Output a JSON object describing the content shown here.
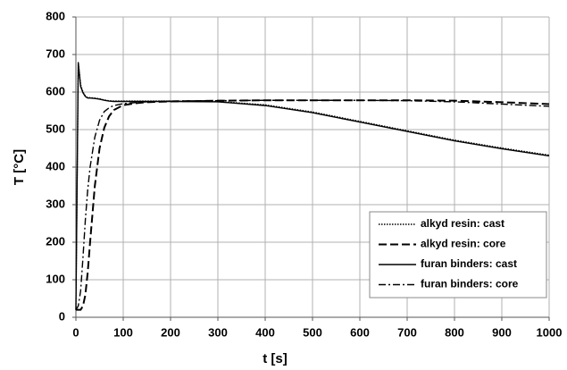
{
  "chart_data": {
    "type": "line",
    "xlabel": "t [s]",
    "ylabel": "T [°C]",
    "x": [
      0,
      5,
      10,
      15,
      20,
      25,
      30,
      40,
      50,
      60,
      70,
      80,
      100,
      125,
      150,
      200,
      300,
      400,
      500,
      600,
      700,
      800,
      900,
      1000
    ],
    "series": [
      {
        "name": "alkyd resin: cast",
        "color": "#000000",
        "dash": "dotted",
        "values": [
          20,
          680,
          620,
          600,
          590,
          585,
          585,
          584,
          582,
          579,
          577,
          576,
          576,
          576,
          576,
          576,
          575,
          566,
          547,
          522,
          497,
          472,
          451,
          432
        ]
      },
      {
        "name": "alkyd resin: core",
        "color": "#000000",
        "dash": "dashed",
        "values": [
          20,
          20,
          20,
          30,
          60,
          120,
          200,
          350,
          450,
          505,
          535,
          552,
          565,
          570,
          573,
          575,
          577,
          578,
          578,
          578,
          578,
          577,
          573,
          568
        ]
      },
      {
        "name": "furan binders: cast",
        "color": "#000000",
        "dash": "solid",
        "values": [
          20,
          678,
          615,
          598,
          588,
          584,
          584,
          583,
          581,
          578,
          576,
          575,
          575,
          575,
          575,
          575,
          574,
          564,
          545,
          520,
          495,
          470,
          449,
          430
        ]
      },
      {
        "name": "furan binders: core",
        "color": "#000000",
        "dash": "dashdot",
        "values": [
          20,
          30,
          70,
          160,
          260,
          340,
          400,
          480,
          525,
          548,
          558,
          564,
          569,
          572,
          574,
          576,
          577,
          578,
          578,
          578,
          577,
          574,
          568,
          562
        ]
      }
    ],
    "xlim": [
      0,
      1000
    ],
    "xticks": [
      0,
      100,
      200,
      300,
      400,
      500,
      600,
      700,
      800,
      900,
      1000
    ],
    "ylim": [
      0,
      800
    ],
    "yticks": [
      0,
      100,
      200,
      300,
      400,
      500,
      600,
      700,
      800
    ],
    "grid": true,
    "legend": "lower right"
  }
}
